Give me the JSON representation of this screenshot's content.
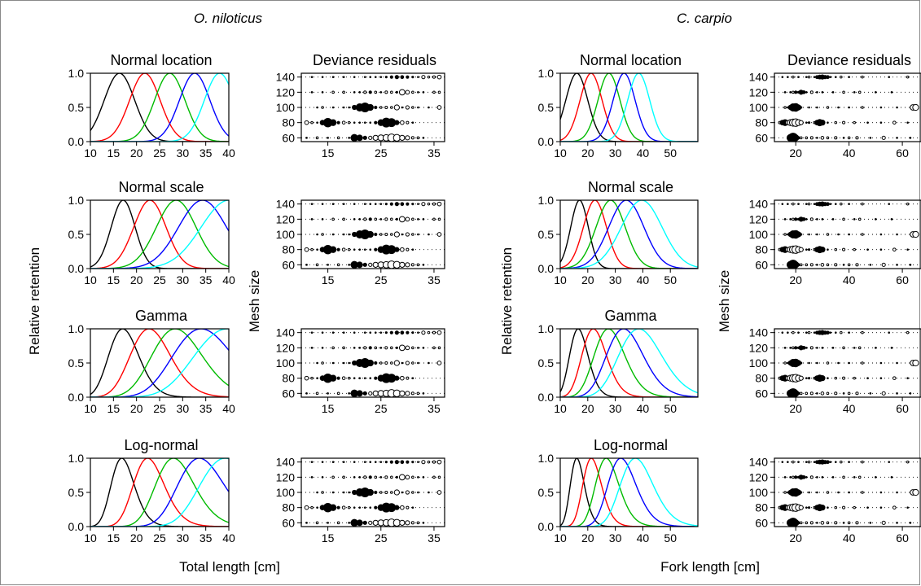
{
  "species": [
    "O. niloticus",
    "C. carpio"
  ],
  "panel_titles": [
    "Normal location",
    "Normal scale",
    "Gamma",
    "Log-normal"
  ],
  "residuals_title": "Deviance residuals",
  "labels": {
    "y_retention": "Relative retention",
    "y_mesh": "Mesh size",
    "x_left": "Total length [cm]",
    "x_right": "Fork length [cm]"
  },
  "colors": {
    "mesh_60": "#000000",
    "mesh_80": "#ff0000",
    "mesh_100": "#00bb00",
    "mesh_120": "#0000ff",
    "mesh_140": "#00ffff"
  },
  "chart_data": [
    {
      "type": "line",
      "species": "O. niloticus",
      "xlim": [
        10,
        40
      ],
      "ylim": [
        0,
        1
      ],
      "xticks": [
        10,
        15,
        20,
        25,
        30,
        35,
        40
      ],
      "yticks": [
        0.0,
        0.5,
        1.0
      ],
      "panels": [
        {
          "title": "Normal location",
          "shape": "normal",
          "series": [
            {
              "mode": 16.3,
              "spread": 3.3
            },
            {
              "mode": 21.8,
              "spread": 3.3
            },
            {
              "mode": 27.2,
              "spread": 3.3
            },
            {
              "mode": 32.6,
              "spread": 3.3
            },
            {
              "mode": 38.0,
              "spread": 3.3
            }
          ]
        },
        {
          "title": "Normal scale",
          "shape": "normal",
          "series": [
            {
              "mode": 17.1,
              "spread": 2.6
            },
            {
              "mode": 22.9,
              "spread": 3.5
            },
            {
              "mode": 28.6,
              "spread": 4.3
            },
            {
              "mode": 34.3,
              "spread": 5.2
            },
            {
              "mode": 40.0,
              "spread": 6.0
            }
          ]
        },
        {
          "title": "Gamma",
          "shape": "gamma",
          "series": [
            {
              "mode": 17.0,
              "shape_k": 28
            },
            {
              "mode": 22.7,
              "shape_k": 28
            },
            {
              "mode": 28.4,
              "shape_k": 28
            },
            {
              "mode": 34.0,
              "shape_k": 28
            },
            {
              "mode": 39.7,
              "shape_k": 28
            }
          ]
        },
        {
          "title": "Log-normal",
          "shape": "lognormal",
          "series": [
            {
              "mode": 16.8,
              "sigma": 0.15
            },
            {
              "mode": 22.4,
              "sigma": 0.15
            },
            {
              "mode": 28.0,
              "sigma": 0.15
            },
            {
              "mode": 33.6,
              "sigma": 0.15
            },
            {
              "mode": 39.2,
              "sigma": 0.15
            }
          ]
        }
      ]
    },
    {
      "type": "line",
      "species": "C. carpio",
      "xlim": [
        10,
        60
      ],
      "ylim": [
        0,
        1
      ],
      "xticks": [
        10,
        20,
        30,
        40,
        50
      ],
      "yticks": [
        0.0,
        0.5,
        1.0
      ],
      "panels": [
        {
          "title": "Normal location",
          "shape": "normal",
          "series": [
            {
              "mode": 16.0,
              "spread": 4.0
            },
            {
              "mode": 21.2,
              "spread": 4.0
            },
            {
              "mode": 27.7,
              "spread": 4.0
            },
            {
              "mode": 33.2,
              "spread": 4.0
            },
            {
              "mode": 38.5,
              "spread": 4.0
            }
          ]
        },
        {
          "title": "Normal scale",
          "shape": "normal",
          "series": [
            {
              "mode": 17.0,
              "spread": 3.2
            },
            {
              "mode": 22.6,
              "spread": 4.2
            },
            {
              "mode": 28.3,
              "spread": 5.3
            },
            {
              "mode": 34.0,
              "spread": 6.4
            },
            {
              "mode": 39.6,
              "spread": 7.4
            }
          ]
        },
        {
          "title": "Gamma",
          "shape": "gamma",
          "series": [
            {
              "mode": 16.5,
              "shape_k": 25
            },
            {
              "mode": 22.0,
              "shape_k": 25
            },
            {
              "mode": 27.5,
              "shape_k": 25
            },
            {
              "mode": 33.0,
              "shape_k": 25
            },
            {
              "mode": 38.5,
              "shape_k": 25
            }
          ]
        },
        {
          "title": "Log-normal",
          "shape": "lognormal",
          "series": [
            {
              "mode": 16.0,
              "sigma": 0.16
            },
            {
              "mode": 21.3,
              "sigma": 0.16
            },
            {
              "mode": 26.7,
              "sigma": 0.16
            },
            {
              "mode": 32.0,
              "sigma": 0.16
            },
            {
              "mode": 37.3,
              "sigma": 0.16
            }
          ]
        }
      ]
    },
    {
      "type": "scatter",
      "species": "O. niloticus",
      "title": "Deviance residuals",
      "xlim": [
        10,
        37
      ],
      "ylim": [
        55,
        145
      ],
      "xticks": [
        15,
        25,
        35
      ],
      "yticks": [
        60,
        80,
        100,
        120,
        140
      ],
      "mesh_sizes": [
        60,
        80,
        100,
        120,
        140
      ],
      "residuals": [
        [
          [
            11,
            0.3
          ],
          [
            13,
            -0.3
          ],
          [
            15,
            0.3
          ],
          [
            17,
            -0.4
          ],
          [
            19,
            0.4
          ],
          [
            20,
            1.8
          ],
          [
            21,
            1.5
          ],
          [
            22,
            1.0
          ],
          [
            23,
            -0.8
          ],
          [
            24,
            -1.2
          ],
          [
            25,
            -1.4
          ],
          [
            26,
            -1.5
          ],
          [
            27,
            -1.8
          ],
          [
            28,
            -1.6
          ],
          [
            29,
            -1.2
          ],
          [
            30,
            -1.0
          ],
          [
            31,
            -0.6
          ],
          [
            32,
            -0.4
          ],
          [
            33,
            0.3
          ]
        ],
        [
          [
            11,
            -0.9
          ],
          [
            12,
            -0.3
          ],
          [
            13,
            0.5
          ],
          [
            14,
            1.3
          ],
          [
            15,
            2.2
          ],
          [
            16,
            1.6
          ],
          [
            17,
            0.8
          ],
          [
            18,
            -0.7
          ],
          [
            19,
            -0.5
          ],
          [
            20,
            0.4
          ],
          [
            21,
            0.5
          ],
          [
            22,
            0.4
          ],
          [
            23,
            0.5
          ],
          [
            24,
            0.8
          ],
          [
            25,
            1.6
          ],
          [
            26,
            2.3
          ],
          [
            27,
            2.1
          ],
          [
            28,
            1.2
          ],
          [
            29,
            -0.9
          ],
          [
            30,
            -0.6
          ],
          [
            31,
            0.3
          ]
        ],
        [
          [
            13,
            0.3
          ],
          [
            14,
            -0.3
          ],
          [
            16,
            0.3
          ],
          [
            18,
            0.3
          ],
          [
            19,
            0.5
          ],
          [
            20,
            1.2
          ],
          [
            21,
            1.9
          ],
          [
            22,
            2.3
          ],
          [
            23,
            1.6
          ],
          [
            24,
            0.8
          ],
          [
            25,
            -0.5
          ],
          [
            26,
            -0.6
          ],
          [
            27,
            -0.5
          ],
          [
            28,
            -1.2
          ],
          [
            29,
            0.4
          ],
          [
            30,
            -0.8
          ],
          [
            31,
            -0.5
          ],
          [
            32,
            0.3
          ],
          [
            34,
            0.3
          ],
          [
            36,
            -0.9
          ]
        ],
        [
          [
            12,
            0.3
          ],
          [
            14,
            0.3
          ],
          [
            16,
            -0.3
          ],
          [
            18,
            -0.3
          ],
          [
            20,
            0.4
          ],
          [
            21,
            0.5
          ],
          [
            22,
            -0.6
          ],
          [
            23,
            0.8
          ],
          [
            24,
            -0.5
          ],
          [
            25,
            0.4
          ],
          [
            26,
            -0.6
          ],
          [
            27,
            -0.5
          ],
          [
            28,
            0.6
          ],
          [
            29,
            -1.3
          ],
          [
            30,
            -0.9
          ],
          [
            31,
            -0.5
          ],
          [
            32,
            0.4
          ],
          [
            33,
            0.3
          ],
          [
            35,
            -0.5
          ],
          [
            36,
            -0.4
          ]
        ],
        [
          [
            12,
            0.3
          ],
          [
            14,
            0.3
          ],
          [
            16,
            0.3
          ],
          [
            18,
            0.3
          ],
          [
            20,
            0.3
          ],
          [
            22,
            0.3
          ],
          [
            23,
            0.4
          ],
          [
            24,
            0.4
          ],
          [
            25,
            0.5
          ],
          [
            26,
            0.6
          ],
          [
            27,
            0.8
          ],
          [
            28,
            1.0
          ],
          [
            29,
            0.9
          ],
          [
            30,
            0.8
          ],
          [
            31,
            0.6
          ],
          [
            32,
            0.4
          ],
          [
            33,
            -0.8
          ],
          [
            34,
            -0.4
          ],
          [
            35,
            -0.6
          ],
          [
            36,
            -0.9
          ]
        ]
      ]
    },
    {
      "type": "scatter",
      "species": "C. carpio",
      "title": "Deviance residuals",
      "xlim": [
        12,
        67
      ],
      "ylim": [
        55,
        145
      ],
      "xticks": [
        20,
        40,
        60
      ],
      "yticks": [
        60,
        80,
        100,
        120,
        140
      ],
      "mesh_sizes": [
        60,
        80,
        100,
        120,
        140
      ],
      "residuals": [
        [
          [
            18,
            1.8
          ],
          [
            19,
            2.4
          ],
          [
            20,
            1.6
          ],
          [
            21,
            0.8
          ],
          [
            22,
            -0.5
          ],
          [
            24,
            -0.4
          ],
          [
            26,
            -0.6
          ],
          [
            28,
            0.3
          ],
          [
            30,
            -0.7
          ],
          [
            32,
            -0.5
          ],
          [
            35,
            -0.6
          ],
          [
            38,
            0.3
          ],
          [
            40,
            -0.5
          ],
          [
            43,
            -0.6
          ],
          [
            48,
            0.3
          ],
          [
            53,
            -0.8
          ],
          [
            58,
            0.3
          ],
          [
            63,
            0.3
          ]
        ],
        [
          [
            14,
            -0.6
          ],
          [
            15,
            1.3
          ],
          [
            16,
            1.6
          ],
          [
            17,
            -1.0
          ],
          [
            18,
            -1.4
          ],
          [
            19,
            -1.7
          ],
          [
            20,
            -1.8
          ],
          [
            21,
            -1.4
          ],
          [
            22,
            -1.0
          ],
          [
            24,
            0.5
          ],
          [
            25,
            0.6
          ],
          [
            27,
            -0.5
          ],
          [
            28,
            1.3
          ],
          [
            29,
            1.7
          ],
          [
            30,
            1.4
          ],
          [
            32,
            0.4
          ],
          [
            35,
            -0.5
          ],
          [
            38,
            -0.6
          ],
          [
            42,
            -0.4
          ],
          [
            47,
            0.3
          ],
          [
            52,
            0.3
          ],
          [
            57,
            -0.7
          ],
          [
            62,
            0.3
          ]
        ],
        [
          [
            16,
            -0.4
          ],
          [
            17,
            0.4
          ],
          [
            18,
            1.2
          ],
          [
            19,
            1.9
          ],
          [
            20,
            2.0
          ],
          [
            21,
            1.4
          ],
          [
            22,
            0.6
          ],
          [
            25,
            0.4
          ],
          [
            28,
            0.3
          ],
          [
            32,
            -0.5
          ],
          [
            36,
            0.3
          ],
          [
            40,
            0.3
          ],
          [
            45,
            -0.4
          ],
          [
            52,
            0.3
          ],
          [
            58,
            0.3
          ],
          [
            64,
            -1.3
          ],
          [
            65,
            -1.4
          ]
        ],
        [
          [
            16,
            0.3
          ],
          [
            18,
            0.5
          ],
          [
            19,
            -0.5
          ],
          [
            20,
            0.8
          ],
          [
            21,
            0.6
          ],
          [
            22,
            1.2
          ],
          [
            23,
            0.9
          ],
          [
            24,
            0.5
          ],
          [
            26,
            -0.6
          ],
          [
            28,
            0.4
          ],
          [
            30,
            0.3
          ],
          [
            34,
            0.3
          ],
          [
            38,
            -0.5
          ],
          [
            42,
            0.3
          ],
          [
            44,
            -0.4
          ],
          [
            50,
            0.3
          ],
          [
            56,
            0.3
          ]
        ],
        [
          [
            15,
            0.3
          ],
          [
            17,
            0.3
          ],
          [
            19,
            -0.4
          ],
          [
            21,
            0.3
          ],
          [
            24,
            0.3
          ],
          [
            25,
            -0.4
          ],
          [
            27,
            0.5
          ],
          [
            28,
            0.9
          ],
          [
            29,
            1.1
          ],
          [
            30,
            1.2
          ],
          [
            31,
            1.0
          ],
          [
            32,
            0.9
          ],
          [
            33,
            0.5
          ],
          [
            35,
            0.3
          ],
          [
            37,
            -0.5
          ],
          [
            40,
            0.3
          ],
          [
            45,
            -0.4
          ],
          [
            55,
            0.3
          ],
          [
            62,
            -0.5
          ]
        ]
      ]
    }
  ]
}
